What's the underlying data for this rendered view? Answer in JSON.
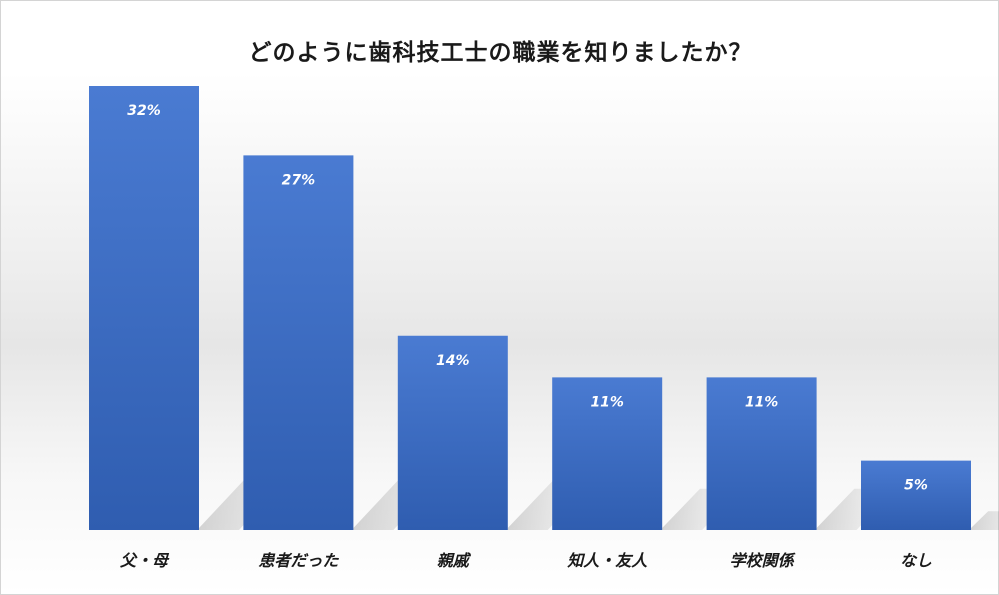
{
  "chart_data": {
    "type": "bar",
    "title": "どのように歯科技工士の職業を知りましたか？",
    "categories": [
      "父・母",
      "患者だった",
      "親戚",
      "知人・友人",
      "学校関係",
      "なし"
    ],
    "values": [
      32,
      27,
      14,
      11,
      11,
      5
    ],
    "data_labels": [
      "32%",
      "27%",
      "14%",
      "11%",
      "11%",
      "5%"
    ],
    "unit": "%",
    "ylim": [
      0,
      32
    ],
    "grid": false,
    "legend": "none",
    "bar_color": "#4472c4"
  }
}
